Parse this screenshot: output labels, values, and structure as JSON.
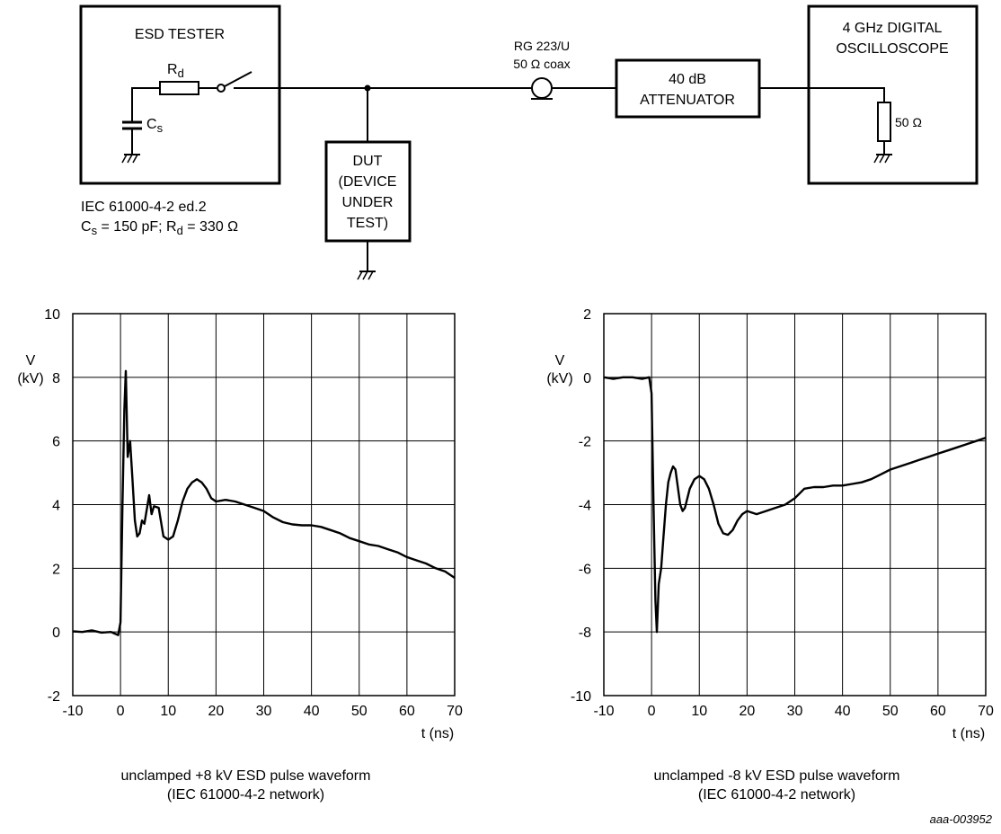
{
  "circuit": {
    "esd_tester_title": "ESD TESTER",
    "rd_main": "R",
    "rd_sub": "d",
    "cs_main": "C",
    "cs_sub": "s",
    "iec_line1": "IEC 61000-4-2 ed.2",
    "iec_line2": {
      "c": "C",
      "cs": "s",
      "mid": " = 150 pF; R",
      "rs": "d",
      "tail": " = 330 Ω"
    },
    "dut_lines": [
      "DUT",
      "(DEVICE",
      "UNDER",
      "TEST)"
    ],
    "coax_lines": [
      "RG 223/U",
      "50 Ω coax"
    ],
    "attenuator_lines": [
      "40 dB",
      "ATTENUATOR"
    ],
    "scope_lines": [
      "4 GHz DIGITAL",
      "OSCILLOSCOPE"
    ],
    "scope_resistor": "50 Ω"
  },
  "footer_code": "aaa-003952",
  "chart_data": [
    {
      "type": "line",
      "ylabel": [
        "V",
        "(kV)"
      ],
      "xlabel": "t (ns)",
      "xlim": [
        -10,
        70
      ],
      "ylim": [
        -2,
        10
      ],
      "xticks": [
        -10,
        0,
        10,
        20,
        30,
        40,
        50,
        60,
        70
      ],
      "yticks": [
        10,
        8,
        6,
        4,
        2,
        0,
        -2
      ],
      "ytick_labels": [
        "10",
        "8",
        "6",
        "4",
        "2",
        "0",
        "-2"
      ],
      "ylabel_at": 8,
      "grid": true,
      "caption": [
        "unclamped +8 kV ESD pulse waveform",
        "(IEC 61000-4-2 network)"
      ],
      "series": [
        {
          "x": [
            -10,
            -8,
            -6,
            -4,
            -2,
            -0.5,
            0,
            0.4,
            0.8,
            1.1,
            1.5,
            2,
            2.5,
            3,
            3.5,
            4,
            4.5,
            5,
            6,
            6.5,
            7,
            8,
            9,
            10,
            11,
            12,
            13,
            14,
            15,
            16,
            17,
            18,
            19,
            20,
            22,
            24,
            26,
            28,
            30,
            32,
            34,
            36,
            38,
            40,
            42,
            44,
            46,
            48,
            50,
            52,
            54,
            56,
            58,
            60,
            62,
            64,
            66,
            68,
            70
          ],
          "y": [
            0.02,
            0.0,
            0.05,
            -0.02,
            0.0,
            -0.1,
            0.3,
            4.0,
            7.0,
            8.2,
            5.5,
            6.0,
            4.8,
            3.5,
            3.0,
            3.1,
            3.5,
            3.4,
            4.3,
            3.7,
            3.95,
            3.9,
            3.0,
            2.9,
            3.0,
            3.5,
            4.1,
            4.5,
            4.7,
            4.8,
            4.7,
            4.5,
            4.2,
            4.1,
            4.15,
            4.1,
            4.0,
            3.9,
            3.8,
            3.6,
            3.45,
            3.38,
            3.35,
            3.35,
            3.3,
            3.2,
            3.1,
            2.95,
            2.85,
            2.75,
            2.7,
            2.6,
            2.5,
            2.35,
            2.25,
            2.15,
            2.0,
            1.9,
            1.7
          ]
        }
      ]
    },
    {
      "type": "line",
      "ylabel": [
        "V",
        "(kV)"
      ],
      "xlabel": "t (ns)",
      "xlim": [
        -10,
        70
      ],
      "ylim": [
        -10,
        2
      ],
      "xticks": [
        -10,
        0,
        10,
        20,
        30,
        40,
        50,
        60,
        70
      ],
      "yticks": [
        2,
        0,
        -2,
        -4,
        -6,
        -8,
        -10
      ],
      "ytick_labels": [
        "2",
        "0",
        "-2",
        "-4",
        "-6",
        "-8",
        "-10"
      ],
      "ylabel_at": 0,
      "grid": true,
      "caption": [
        "unclamped -8 kV ESD pulse waveform",
        "(IEC 61000-4-2 network)"
      ],
      "series": [
        {
          "x": [
            -10,
            -8,
            -6,
            -4,
            -2,
            -0.5,
            0,
            0.4,
            0.8,
            1.1,
            1.5,
            2,
            2.5,
            3,
            3.5,
            4,
            4.5,
            5,
            6,
            6.5,
            7,
            8,
            9,
            10,
            11,
            12,
            13,
            14,
            15,
            16,
            17,
            18,
            19,
            20,
            22,
            24,
            26,
            28,
            30,
            32,
            34,
            36,
            38,
            40,
            42,
            44,
            46,
            48,
            50,
            52,
            54,
            56,
            58,
            60,
            62,
            64,
            66,
            68,
            70
          ],
          "y": [
            0.0,
            -0.05,
            0.0,
            0.0,
            -0.05,
            0.0,
            -0.5,
            -4.0,
            -7.0,
            -8.0,
            -6.5,
            -6.0,
            -5.0,
            -4.0,
            -3.3,
            -3.0,
            -2.8,
            -2.9,
            -4.0,
            -4.2,
            -4.1,
            -3.5,
            -3.2,
            -3.1,
            -3.2,
            -3.5,
            -4.0,
            -4.6,
            -4.9,
            -4.95,
            -4.8,
            -4.5,
            -4.3,
            -4.2,
            -4.3,
            -4.2,
            -4.1,
            -4.0,
            -3.8,
            -3.5,
            -3.45,
            -3.45,
            -3.4,
            -3.4,
            -3.35,
            -3.3,
            -3.2,
            -3.05,
            -2.9,
            -2.8,
            -2.7,
            -2.6,
            -2.5,
            -2.4,
            -2.3,
            -2.2,
            -2.1,
            -2.0,
            -1.9
          ]
        }
      ]
    }
  ]
}
